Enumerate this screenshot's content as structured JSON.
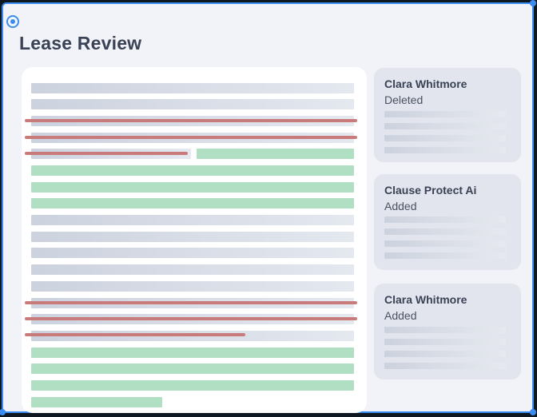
{
  "page": {
    "title": "Lease Review"
  },
  "colors": {
    "accent": "#3b8cf0",
    "added": "#b1dfc3",
    "deleted_strike": "#c97b7b",
    "text_placeholder": "#ccd2de"
  },
  "icons": {
    "select": "radio-target-icon"
  },
  "document": {
    "line_kinds": [
      "plain",
      "plain",
      "deleted",
      "deleted",
      "deleted+added",
      "added",
      "added",
      "added",
      "plain",
      "plain",
      "plain",
      "plain",
      "plain",
      "deleted",
      "deleted",
      "deleted",
      "added",
      "added",
      "added",
      "added"
    ]
  },
  "changes": [
    {
      "author": "Clara Whitmore",
      "action": "Deleted"
    },
    {
      "author": "Clause Protect Ai",
      "action": "Added"
    },
    {
      "author": "Clara Whitmore",
      "action": "Added"
    }
  ]
}
